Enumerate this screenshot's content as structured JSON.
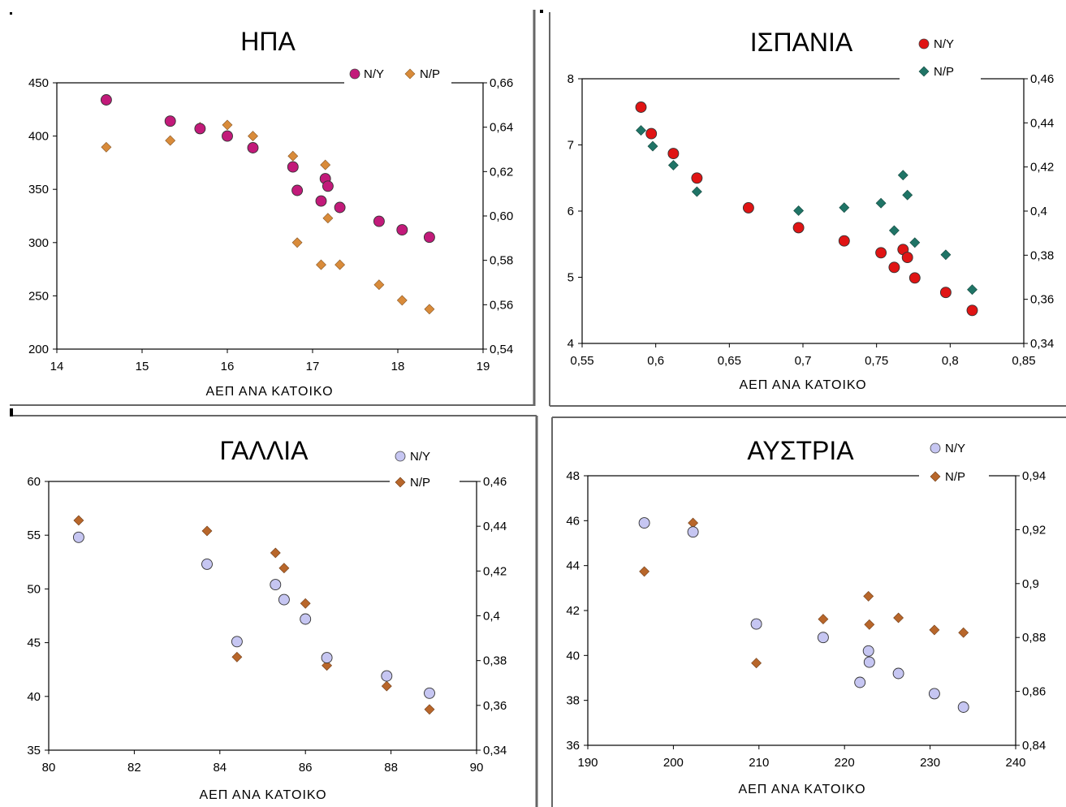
{
  "colors": {
    "usa_ny": "#c21a7a",
    "spain_ny": "#e01414",
    "spain_np": "#1f7466",
    "france_ny": "#c6c6f2",
    "austria_ny": "#c6c6f2",
    "np_orange": "#d98b3a",
    "np_brown": "#b8662a",
    "divider": "#666666"
  },
  "chart_data": [
    {
      "id": "usa",
      "type": "scatter",
      "title": "ΗΠΑ",
      "xlabel": "ΑΕΠ ΑΝΑ ΚΑΤΟΙΚΟ",
      "xlim": [
        14,
        19
      ],
      "xticks": [
        "14",
        "15",
        "16",
        "17",
        "18",
        "19"
      ],
      "ylim": [
        200,
        450
      ],
      "yticks": [
        "200",
        "250",
        "300",
        "350",
        "400",
        "450"
      ],
      "y2lim": [
        0.54,
        0.66
      ],
      "y2ticks": [
        "0,54",
        "0,56",
        "0,58",
        "0,60",
        "0,62",
        "0,64",
        "0,66"
      ],
      "legend_placement": "top-right",
      "series": [
        {
          "name": "N/Y",
          "axis": "left",
          "marker": "circle",
          "color": "#c21a7a",
          "points": [
            [
              14.58,
              434
            ],
            [
              15.33,
              414
            ],
            [
              15.68,
              407
            ],
            [
              16.0,
              400
            ],
            [
              16.3,
              389
            ],
            [
              16.77,
              371
            ],
            [
              16.82,
              349
            ],
            [
              17.1,
              339
            ],
            [
              17.15,
              360
            ],
            [
              17.18,
              353
            ],
            [
              17.32,
              333
            ],
            [
              17.78,
              320
            ],
            [
              18.05,
              312
            ],
            [
              18.37,
              305
            ]
          ]
        },
        {
          "name": "N/P",
          "axis": "right",
          "marker": "diamond",
          "color": "#d98b3a",
          "points": [
            [
              14.58,
              0.631
            ],
            [
              15.33,
              0.634
            ],
            [
              15.68,
              0.64
            ],
            [
              16.0,
              0.641
            ],
            [
              16.3,
              0.636
            ],
            [
              16.77,
              0.627
            ],
            [
              16.82,
              0.588
            ],
            [
              17.1,
              0.578
            ],
            [
              17.15,
              0.623
            ],
            [
              17.18,
              0.599
            ],
            [
              17.32,
              0.578
            ],
            [
              17.78,
              0.569
            ],
            [
              18.05,
              0.562
            ],
            [
              18.37,
              0.558
            ]
          ]
        }
      ]
    },
    {
      "id": "spain",
      "type": "scatter",
      "title": "ΙΣΠΑΝΙΑ",
      "xlabel": "ΑΕΠ ΑΝΑ ΚΑΤΟΙΚΟ",
      "xlim": [
        0.55,
        0.85
      ],
      "xticks": [
        "0,55",
        "0,6",
        "0,65",
        "0,7",
        "0,75",
        "0,8",
        "0,85"
      ],
      "ylim": [
        4,
        8
      ],
      "yticks": [
        "4",
        "5",
        "6",
        "7",
        "8"
      ],
      "y2lim": [
        0.34,
        0.46
      ],
      "y2ticks": [
        "0,34",
        "0,36",
        "0,38",
        "0,4",
        "0,42",
        "0,44",
        "0,46"
      ],
      "legend_placement": "top-right",
      "series": [
        {
          "name": "N/Y",
          "axis": "left",
          "marker": "circle",
          "color": "#e01414",
          "points": [
            [
              0.59,
              7.57
            ],
            [
              0.597,
              7.17
            ],
            [
              0.612,
              6.87
            ],
            [
              0.628,
              6.5
            ],
            [
              0.663,
              6.05
            ],
            [
              0.697,
              5.75
            ],
            [
              0.728,
              5.55
            ],
            [
              0.753,
              5.37
            ],
            [
              0.762,
              5.15
            ],
            [
              0.768,
              5.42
            ],
            [
              0.771,
              5.3
            ],
            [
              0.776,
              4.99
            ],
            [
              0.797,
              4.77
            ],
            [
              0.815,
              4.5
            ]
          ]
        },
        {
          "name": "N/P",
          "axis": "right",
          "marker": "diamond",
          "color": "#1f7466",
          "points": [
            [
              0.59,
              0.4366
            ],
            [
              0.598,
              0.4294
            ],
            [
              0.612,
              0.4208
            ],
            [
              0.628,
              0.4088
            ],
            [
              0.663,
              0.4014
            ],
            [
              0.697,
              0.4002
            ],
            [
              0.728,
              0.4016
            ],
            [
              0.753,
              0.4036
            ],
            [
              0.762,
              0.3912
            ],
            [
              0.768,
              0.4163
            ],
            [
              0.771,
              0.4073
            ],
            [
              0.776,
              0.3857
            ],
            [
              0.797,
              0.3802
            ],
            [
              0.815,
              0.3644
            ]
          ]
        }
      ]
    },
    {
      "id": "france",
      "type": "scatter",
      "title": "ΓΑΛΛΙΑ",
      "xlabel": "ΑΕΠ ΑΝΑ ΚΑΤΟΙΚΟ",
      "xlim": [
        80,
        90
      ],
      "xticks": [
        "80",
        "82",
        "84",
        "86",
        "88",
        "90"
      ],
      "ylim": [
        35,
        60
      ],
      "yticks": [
        "35",
        "40",
        "45",
        "50",
        "55",
        "60"
      ],
      "y2lim": [
        0.34,
        0.46
      ],
      "y2ticks": [
        "0,34",
        "0,36",
        "0,38",
        "0,4",
        "0,42",
        "0,44",
        "0,46"
      ],
      "legend_placement": "top-right",
      "series": [
        {
          "name": "N/Y",
          "axis": "left",
          "marker": "circle",
          "color": "#c6c6f2",
          "points": [
            [
              80.7,
              54.8
            ],
            [
              83.7,
              52.3
            ],
            [
              84.4,
              45.1
            ],
            [
              85.3,
              50.4
            ],
            [
              85.5,
              49.0
            ],
            [
              86.0,
              47.2
            ],
            [
              86.5,
              43.6
            ],
            [
              87.9,
              41.9
            ],
            [
              88.9,
              40.3
            ]
          ]
        },
        {
          "name": "N/P",
          "axis": "right",
          "marker": "diamond",
          "color": "#b8662a",
          "points": [
            [
              80.7,
              0.4426
            ],
            [
              83.7,
              0.4379
            ],
            [
              84.4,
              0.3816
            ],
            [
              85.3,
              0.4281
            ],
            [
              85.5,
              0.4213
            ],
            [
              86.0,
              0.4055
            ],
            [
              86.5,
              0.3778
            ],
            [
              87.9,
              0.3686
            ],
            [
              88.9,
              0.3582
            ]
          ]
        }
      ]
    },
    {
      "id": "austria",
      "type": "scatter",
      "title": "ΑΥΣΤΡΙΑ",
      "xlabel": "ΑΕΠ ΑΝΑ ΚΑΤΟΙΚΟ",
      "xlim": [
        190,
        240
      ],
      "xticks": [
        "190",
        "200",
        "210",
        "220",
        "230",
        "240"
      ],
      "ylim": [
        36,
        48
      ],
      "yticks": [
        "36",
        "38",
        "40",
        "42",
        "44",
        "46",
        "48"
      ],
      "y2lim": [
        0.84,
        0.94
      ],
      "y2ticks": [
        "0,84",
        "0,86",
        "0,88",
        "0,9",
        "0,92",
        "0,94"
      ],
      "legend_placement": "top-right",
      "series": [
        {
          "name": "N/Y",
          "axis": "left",
          "marker": "circle",
          "color": "#c6c6f2",
          "points": [
            [
              196.6,
              45.9
            ],
            [
              202.3,
              45.5
            ],
            [
              209.7,
              41.4
            ],
            [
              217.5,
              40.8
            ],
            [
              221.8,
              38.8
            ],
            [
              222.8,
              40.2
            ],
            [
              222.9,
              39.7
            ],
            [
              226.3,
              39.2
            ],
            [
              230.5,
              38.3
            ],
            [
              233.9,
              37.7
            ]
          ]
        },
        {
          "name": "N/P",
          "axis": "right",
          "marker": "diamond",
          "color": "#b8662a",
          "points": [
            [
              196.6,
              0.9045
            ],
            [
              202.3,
              0.9225
            ],
            [
              209.7,
              0.8705
            ],
            [
              217.5,
              0.8868
            ],
            [
              221.8,
              0.8633
            ],
            [
              222.8,
              0.8953
            ],
            [
              222.9,
              0.8848
            ],
            [
              226.3,
              0.8873
            ],
            [
              230.5,
              0.8828
            ],
            [
              233.9,
              0.8818
            ]
          ]
        }
      ]
    }
  ]
}
